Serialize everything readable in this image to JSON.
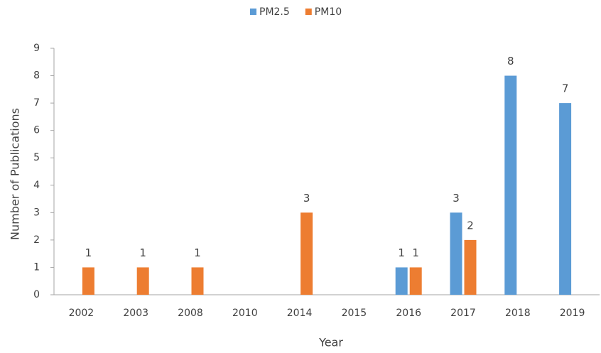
{
  "chart_data": {
    "type": "bar",
    "categories": [
      "2002",
      "2003",
      "2008",
      "2010",
      "2014",
      "2015",
      "2016",
      "2017",
      "2018",
      "2019"
    ],
    "series": [
      {
        "name": "PM2.5",
        "color": "#5b9bd5",
        "values": [
          null,
          null,
          null,
          null,
          null,
          null,
          1,
          3,
          8,
          7
        ]
      },
      {
        "name": "PM10",
        "color": "#ed7d31",
        "values": [
          1,
          1,
          1,
          null,
          3,
          null,
          1,
          2,
          null,
          null
        ]
      }
    ],
    "x_label": "Year",
    "y_label": "Number  of Publications",
    "ylim": [
      0,
      9
    ],
    "yticks": [
      0,
      1,
      2,
      3,
      4,
      5,
      6,
      7,
      8,
      9
    ],
    "grid": false,
    "legend": "top"
  }
}
